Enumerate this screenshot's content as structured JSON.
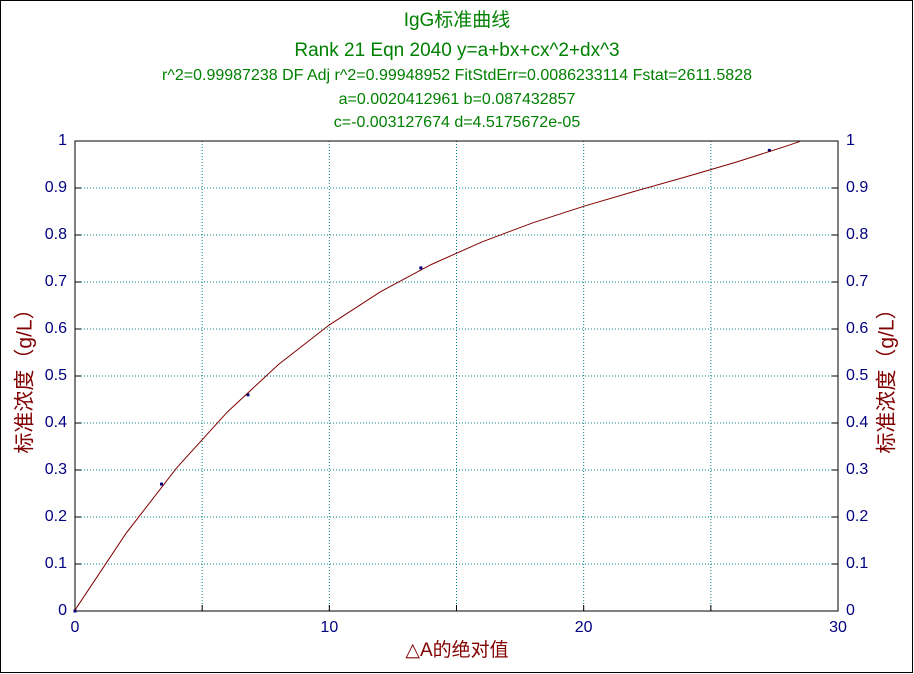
{
  "chart_data": {
    "type": "scatter",
    "title": "IgG标准曲线",
    "subtitle": "Rank 21  Eqn 2040  y=a+bx+cx^2+dx^3",
    "annotations": [
      "r^2=0.99987238  DF Adj r^2=0.99948952  FitStdErr=0.0086233114  Fstat=2611.5828",
      "a=0.0020412961 b=0.087432857",
      "c=-0.003127674 d=4.5175672e-05"
    ],
    "x_label": "△A的绝对值",
    "y_label": "标准浓度（g/L）",
    "series": [
      {
        "type": "scatter",
        "color": "#000080",
        "x": [
          0,
          3.4,
          6.8,
          13.6,
          27.3
        ],
        "values": [
          0,
          0.27,
          0.46,
          0.73,
          0.98
        ]
      },
      {
        "type": "line",
        "color": "#800000",
        "x": [
          0,
          2,
          4,
          6,
          8,
          10,
          12,
          14,
          16,
          18,
          20,
          22,
          24,
          26,
          28,
          28.5
        ],
        "values": [
          0.002,
          0.1647,
          0.3046,
          0.424,
          0.5244,
          0.6087,
          0.6789,
          0.737,
          0.7853,
          0.8259,
          0.861,
          0.8928,
          0.9234,
          0.955,
          0.9898,
          0.9991
        ]
      }
    ],
    "xlim": [
      0,
      30
    ],
    "xticks": [
      0,
      10,
      20,
      30
    ],
    "x_minor_ticks": [
      5,
      15,
      25
    ],
    "ylim": [
      0,
      1
    ],
    "yticks": [
      0,
      0.1,
      0.2,
      0.3,
      0.4,
      0.5,
      0.6,
      0.7,
      0.8,
      0.9,
      1
    ],
    "grid": true,
    "grid_color": "#008080",
    "title_color": "#008000",
    "label_color": "#800000",
    "tick_color": "#000080"
  }
}
